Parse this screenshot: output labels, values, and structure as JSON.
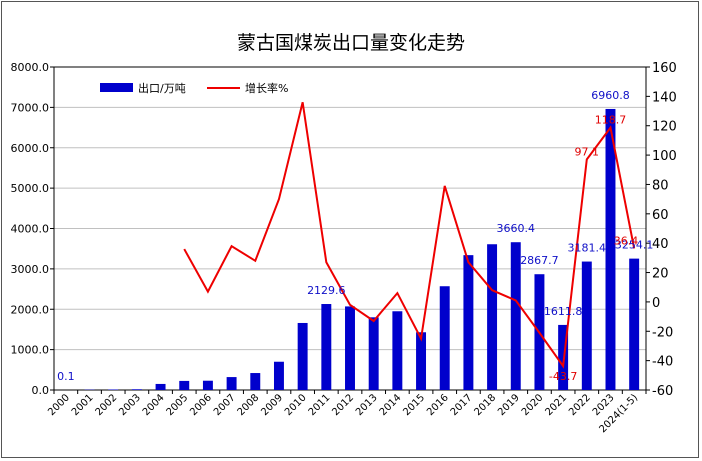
{
  "chart_data": {
    "type": "bar",
    "title": "蒙古国煤炭出口量变化走势",
    "categories": [
      "2000",
      "2001",
      "2002",
      "2003",
      "2004",
      "2005",
      "2006",
      "2007",
      "2008",
      "2009",
      "2010",
      "2011",
      "2012",
      "2013",
      "2014",
      "2015",
      "2016",
      "2017",
      "2018",
      "2019",
      "2020",
      "2021",
      "2022",
      "2023",
      "2024(1-5)"
    ],
    "series": [
      {
        "name": "出口/万吨",
        "type": "bar",
        "axis": "left",
        "color": "#0000cc",
        "values": [
          0.1,
          8,
          12,
          18,
          150,
          225,
          230,
          320,
          420,
          700,
          1660,
          2129.6,
          2070,
          1800,
          1950,
          1430,
          2570,
          3340,
          3610,
          3660.4,
          2867.7,
          1611.8,
          3181.4,
          6960.8,
          3254.1
        ]
      },
      {
        "name": "增长率%",
        "type": "line",
        "axis": "right",
        "color": "#ee0000",
        "values": [
          null,
          null,
          null,
          null,
          null,
          36,
          7,
          38,
          28,
          70,
          136,
          27,
          -2,
          -13,
          6,
          -25,
          79,
          27,
          8,
          1,
          -21,
          -43.7,
          97.1,
          118.7,
          36.4
        ]
      }
    ],
    "y_left": {
      "min": 0,
      "max": 8000,
      "step": 1000,
      "tick_labels": [
        "0.0",
        "1000.0",
        "2000.0",
        "3000.0",
        "4000.0",
        "5000.0",
        "6000.0",
        "7000.0",
        "8000.0"
      ]
    },
    "y_right": {
      "min": -60,
      "max": 160,
      "step": 20,
      "tick_labels": [
        "-60",
        "-40",
        "-20",
        "0",
        "20",
        "40",
        "60",
        "80",
        "100",
        "120",
        "140",
        "160"
      ]
    },
    "grid": true,
    "legend": "top-left",
    "bar_labels": [
      {
        "index": 0,
        "text": "0.1"
      },
      {
        "index": 11,
        "text": "2129.6"
      },
      {
        "index": 19,
        "text": "3660.4"
      },
      {
        "index": 20,
        "text": "2867.7"
      },
      {
        "index": 21,
        "text": "1611.8"
      },
      {
        "index": 22,
        "text": "3181.4"
      },
      {
        "index": 23,
        "text": "6960.8"
      },
      {
        "index": 24,
        "text": "3254.1"
      }
    ],
    "line_labels": [
      {
        "index": 21,
        "text": "-43.7"
      },
      {
        "index": 22,
        "text": "97.1"
      },
      {
        "index": 23,
        "text": "118.7"
      },
      {
        "index": 24,
        "text": "36.4"
      }
    ]
  }
}
